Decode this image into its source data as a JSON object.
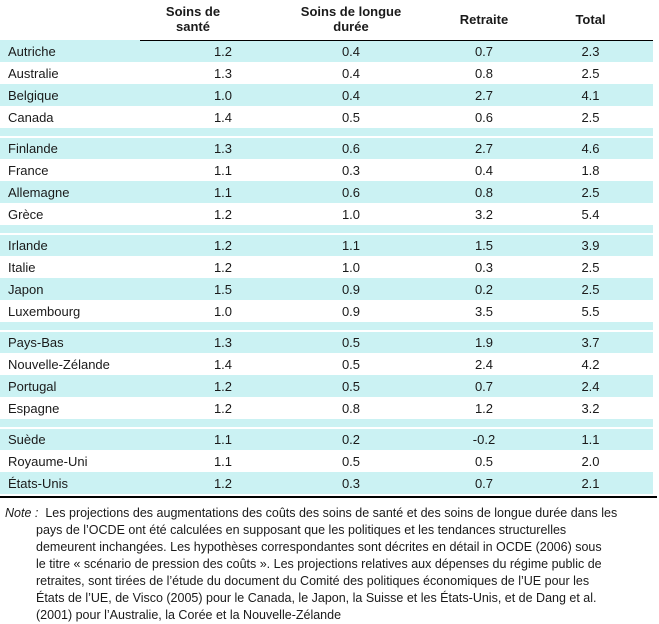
{
  "table": {
    "columns": [
      "",
      "Soins de santé",
      "Soins de longue durée",
      "Retraite",
      "Total"
    ],
    "groups": [
      {
        "rows": [
          {
            "country": "Autriche",
            "values": [
              "1.2",
              "0.4",
              "0.7",
              "2.3"
            ]
          },
          {
            "country": "Australie",
            "values": [
              "1.3",
              "0.4",
              "0.8",
              "2.5"
            ]
          },
          {
            "country": "Belgique",
            "values": [
              "1.0",
              "0.4",
              "2.7",
              "4.1"
            ]
          },
          {
            "country": "Canada",
            "values": [
              "1.4",
              "0.5",
              "0.6",
              "2.5"
            ]
          }
        ]
      },
      {
        "rows": [
          {
            "country": "Finlande",
            "values": [
              "1.3",
              "0.6",
              "2.7",
              "4.6"
            ]
          },
          {
            "country": "France",
            "values": [
              "1.1",
              "0.3",
              "0.4",
              "1.8"
            ]
          },
          {
            "country": "Allemagne",
            "values": [
              "1.1",
              "0.6",
              "0.8",
              "2.5"
            ]
          },
          {
            "country": "Grèce",
            "values": [
              "1.2",
              "1.0",
              "3.2",
              "5.4"
            ]
          }
        ]
      },
      {
        "rows": [
          {
            "country": "Irlande",
            "values": [
              "1.2",
              "1.1",
              "1.5",
              "3.9"
            ]
          },
          {
            "country": "Italie",
            "values": [
              "1.2",
              "1.0",
              "0.3",
              "2.5"
            ]
          },
          {
            "country": "Japon",
            "values": [
              "1.5",
              "0.9",
              "0.2",
              "2.5"
            ]
          },
          {
            "country": "Luxembourg",
            "values": [
              "1.0",
              "0.9",
              "3.5",
              "5.5"
            ]
          }
        ]
      },
      {
        "rows": [
          {
            "country": "Pays-Bas",
            "values": [
              "1.3",
              "0.5",
              "1.9",
              "3.7"
            ]
          },
          {
            "country": "Nouvelle-Zélande",
            "values": [
              "1.4",
              "0.5",
              "2.4",
              "4.2"
            ]
          },
          {
            "country": "Portugal",
            "values": [
              "1.2",
              "0.5",
              "0.7",
              "2.4"
            ]
          },
          {
            "country": "Espagne",
            "values": [
              "1.2",
              "0.8",
              "1.2",
              "3.2"
            ]
          }
        ]
      },
      {
        "rows": [
          {
            "country": "Suède",
            "values": [
              "1.1",
              "0.2",
              "-0.2",
              "1.1"
            ]
          },
          {
            "country": "Royaume-Uni",
            "values": [
              "1.1",
              "0.5",
              "0.5",
              "2.0"
            ]
          },
          {
            "country": "États-Unis",
            "values": [
              "1.2",
              "0.3",
              "0.7",
              "2.1"
            ]
          }
        ]
      }
    ]
  },
  "note": {
    "label": "Note :",
    "lines": [
      "Les projections des augmentations des coûts des soins de santé et des soins de longue durée dans les",
      "pays de l’OCDE ont été calculées en supposant que les politiques et les tendances structurelles",
      "demeurent inchangées. Les hypothèses correspondantes sont décrites en détail in OCDE (2006) sous",
      "le titre  « scénario de pression des coûts ». Les projections relatives aux dépenses du régime public de",
      "retraites, sont tirées de l’étude du document du Comité des politiques économiques de l’UE pour les",
      "États de l’UE, de Visco (2005) pour le Canada, le Japon, la Suisse et les États-Unis, et de Dang et al.",
      "(2001) pour l’Australie, la Corée et la Nouvelle-Zélande"
    ]
  },
  "colors": {
    "row_shading": "#cbf2f3",
    "rule": "#000000",
    "text": "#1a1a1a"
  }
}
